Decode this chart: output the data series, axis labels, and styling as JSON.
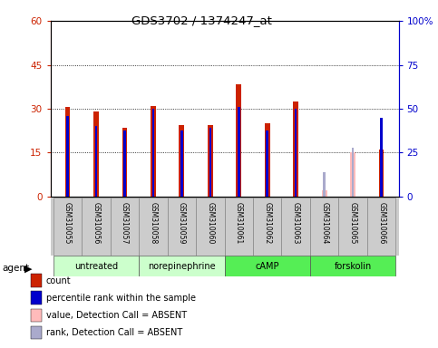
{
  "title": "GDS3702 / 1374247_at",
  "samples": [
    "GSM310055",
    "GSM310056",
    "GSM310057",
    "GSM310058",
    "GSM310059",
    "GSM310060",
    "GSM310061",
    "GSM310062",
    "GSM310063",
    "GSM310064",
    "GSM310065",
    "GSM310066"
  ],
  "count_values": [
    30.5,
    29.0,
    23.5,
    31.0,
    24.5,
    24.5,
    38.5,
    25.0,
    32.5,
    null,
    null,
    16.0
  ],
  "percentile_values": [
    46.0,
    40.0,
    37.5,
    50.0,
    37.5,
    39.0,
    51.0,
    37.5,
    50.0,
    null,
    null,
    45.0
  ],
  "absent_count_values": [
    null,
    null,
    null,
    null,
    null,
    null,
    null,
    null,
    null,
    2.0,
    15.0,
    null
  ],
  "absent_rank_values": [
    null,
    null,
    null,
    null,
    null,
    null,
    null,
    null,
    null,
    14.0,
    28.0,
    null
  ],
  "groups": [
    {
      "label": "untreated",
      "start": 0,
      "end": 3,
      "color": "#ccffcc"
    },
    {
      "label": "norepinephrine",
      "start": 3,
      "end": 6,
      "color": "#ccffcc"
    },
    {
      "label": "cAMP",
      "start": 6,
      "end": 9,
      "color": "#55ee55"
    },
    {
      "label": "forskolin",
      "start": 9,
      "end": 12,
      "color": "#55ee55"
    }
  ],
  "ylim_left": [
    0,
    60
  ],
  "ylim_right": [
    0,
    100
  ],
  "yticks_left": [
    0,
    15,
    30,
    45,
    60
  ],
  "yticks_right": [
    0,
    25,
    50,
    75,
    100
  ],
  "ytick_labels_left": [
    "0",
    "15",
    "30",
    "45",
    "60"
  ],
  "ytick_labels_right": [
    "0",
    "25",
    "50",
    "75",
    "100%"
  ],
  "count_color": "#cc2200",
  "percentile_color": "#0000cc",
  "absent_count_color": "#ffbbbb",
  "absent_rank_color": "#aaaacc",
  "legend_items": [
    {
      "label": "count",
      "color": "#cc2200"
    },
    {
      "label": "percentile rank within the sample",
      "color": "#0000cc"
    },
    {
      "label": "value, Detection Call = ABSENT",
      "color": "#ffbbbb"
    },
    {
      "label": "rank, Detection Call = ABSENT",
      "color": "#aaaacc"
    }
  ],
  "grid_color": "#000000",
  "plot_bg": "#ffffff",
  "label_bg": "#cccccc"
}
